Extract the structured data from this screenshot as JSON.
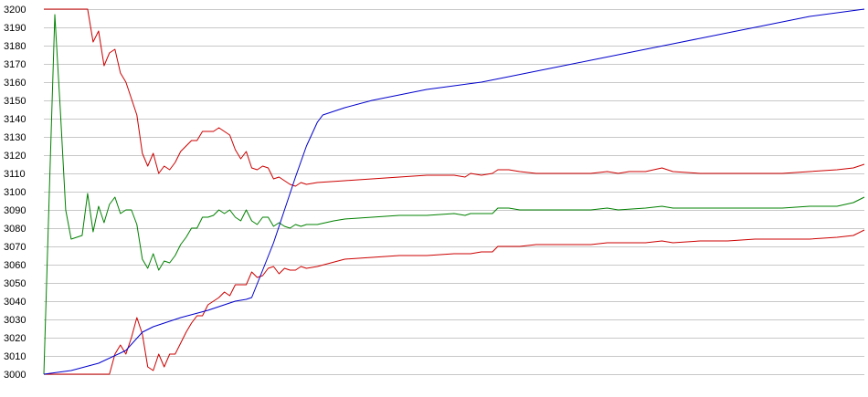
{
  "chart_data": {
    "type": "line",
    "title": "",
    "xlabel": "",
    "ylabel": "",
    "ylim": [
      3000,
      3200
    ],
    "yticks": [
      3000,
      3010,
      3020,
      3030,
      3040,
      3050,
      3060,
      3070,
      3080,
      3090,
      3100,
      3110,
      3120,
      3130,
      3140,
      3150,
      3160,
      3170,
      3180,
      3190,
      3200
    ],
    "x_count": 151,
    "grid": "horizontal",
    "legend": "none",
    "series": [
      {
        "color": "#cc0000",
        "points": [
          [
            0,
            3200
          ],
          [
            8,
            3200
          ],
          [
            9,
            3182
          ],
          [
            10,
            3188
          ],
          [
            11,
            3169
          ],
          [
            12,
            3176
          ],
          [
            13,
            3178
          ],
          [
            14,
            3165
          ],
          [
            15,
            3160
          ],
          [
            17,
            3142
          ],
          [
            18,
            3121
          ],
          [
            19,
            3114
          ],
          [
            20,
            3121
          ],
          [
            21,
            3110
          ],
          [
            22,
            3114
          ],
          [
            23,
            3112
          ],
          [
            24,
            3116
          ],
          [
            25,
            3122
          ],
          [
            27,
            3128
          ],
          [
            28,
            3128
          ],
          [
            29,
            3133
          ],
          [
            30,
            3133
          ],
          [
            31,
            3133
          ],
          [
            32,
            3135
          ],
          [
            34,
            3131
          ],
          [
            35,
            3123
          ],
          [
            36,
            3118
          ],
          [
            37,
            3122
          ],
          [
            38,
            3113
          ],
          [
            39,
            3112
          ],
          [
            40,
            3114
          ],
          [
            41,
            3113
          ],
          [
            42,
            3107
          ],
          [
            43,
            3108
          ],
          [
            45,
            3104
          ],
          [
            46,
            3103
          ],
          [
            47,
            3105
          ],
          [
            48,
            3104
          ],
          [
            50,
            3105
          ],
          [
            55,
            3106
          ],
          [
            60,
            3107
          ],
          [
            65,
            3108
          ],
          [
            70,
            3109
          ],
          [
            75,
            3109
          ],
          [
            77,
            3108
          ],
          [
            78,
            3110
          ],
          [
            80,
            3109
          ],
          [
            82,
            3110
          ],
          [
            83,
            3112
          ],
          [
            85,
            3112
          ],
          [
            87,
            3111
          ],
          [
            90,
            3110
          ],
          [
            95,
            3110
          ],
          [
            100,
            3110
          ],
          [
            103,
            3111
          ],
          [
            105,
            3110
          ],
          [
            107,
            3111
          ],
          [
            110,
            3111
          ],
          [
            113,
            3113
          ],
          [
            115,
            3111
          ],
          [
            120,
            3110
          ],
          [
            125,
            3110
          ],
          [
            130,
            3110
          ],
          [
            135,
            3110
          ],
          [
            140,
            3111
          ],
          [
            145,
            3112
          ],
          [
            148,
            3113
          ],
          [
            150,
            3115
          ]
        ]
      },
      {
        "color": "#008000",
        "points": [
          [
            0,
            3000
          ],
          [
            1,
            3100
          ],
          [
            2,
            3197
          ],
          [
            3,
            3145
          ],
          [
            4,
            3090
          ],
          [
            5,
            3074
          ],
          [
            7,
            3076
          ],
          [
            8,
            3099
          ],
          [
            9,
            3078
          ],
          [
            10,
            3092
          ],
          [
            11,
            3083
          ],
          [
            12,
            3093
          ],
          [
            13,
            3097
          ],
          [
            14,
            3088
          ],
          [
            15,
            3090
          ],
          [
            16,
            3090
          ],
          [
            17,
            3082
          ],
          [
            18,
            3063
          ],
          [
            19,
            3058
          ],
          [
            20,
            3066
          ],
          [
            21,
            3057
          ],
          [
            22,
            3062
          ],
          [
            23,
            3061
          ],
          [
            24,
            3065
          ],
          [
            25,
            3071
          ],
          [
            26,
            3075
          ],
          [
            27,
            3080
          ],
          [
            28,
            3080
          ],
          [
            29,
            3086
          ],
          [
            30,
            3086
          ],
          [
            31,
            3087
          ],
          [
            32,
            3090
          ],
          [
            33,
            3088
          ],
          [
            34,
            3090
          ],
          [
            35,
            3086
          ],
          [
            36,
            3084
          ],
          [
            37,
            3090
          ],
          [
            38,
            3084
          ],
          [
            39,
            3082
          ],
          [
            40,
            3086
          ],
          [
            41,
            3086
          ],
          [
            42,
            3081
          ],
          [
            43,
            3083
          ],
          [
            44,
            3081
          ],
          [
            45,
            3080
          ],
          [
            46,
            3082
          ],
          [
            47,
            3081
          ],
          [
            48,
            3082
          ],
          [
            50,
            3082
          ],
          [
            53,
            3084
          ],
          [
            55,
            3085
          ],
          [
            60,
            3086
          ],
          [
            65,
            3087
          ],
          [
            70,
            3087
          ],
          [
            75,
            3088
          ],
          [
            77,
            3087
          ],
          [
            78,
            3088
          ],
          [
            80,
            3088
          ],
          [
            82,
            3088
          ],
          [
            83,
            3091
          ],
          [
            85,
            3091
          ],
          [
            87,
            3090
          ],
          [
            90,
            3090
          ],
          [
            95,
            3090
          ],
          [
            100,
            3090
          ],
          [
            103,
            3091
          ],
          [
            105,
            3090
          ],
          [
            110,
            3091
          ],
          [
            113,
            3092
          ],
          [
            115,
            3091
          ],
          [
            120,
            3091
          ],
          [
            125,
            3091
          ],
          [
            130,
            3091
          ],
          [
            135,
            3091
          ],
          [
            140,
            3092
          ],
          [
            145,
            3092
          ],
          [
            148,
            3094
          ],
          [
            150,
            3097
          ]
        ]
      },
      {
        "color": "#cc0000",
        "points": [
          [
            0,
            3000
          ],
          [
            12,
            3000
          ],
          [
            13,
            3011
          ],
          [
            14,
            3016
          ],
          [
            15,
            3011
          ],
          [
            16,
            3020
          ],
          [
            17,
            3031
          ],
          [
            18,
            3022
          ],
          [
            19,
            3004
          ],
          [
            20,
            3002
          ],
          [
            21,
            3011
          ],
          [
            22,
            3004
          ],
          [
            23,
            3011
          ],
          [
            24,
            3011
          ],
          [
            25,
            3017
          ],
          [
            26,
            3023
          ],
          [
            27,
            3028
          ],
          [
            28,
            3032
          ],
          [
            29,
            3032
          ],
          [
            30,
            3038
          ],
          [
            31,
            3040
          ],
          [
            32,
            3042
          ],
          [
            33,
            3045
          ],
          [
            34,
            3043
          ],
          [
            35,
            3049
          ],
          [
            36,
            3049
          ],
          [
            37,
            3049
          ],
          [
            38,
            3056
          ],
          [
            39,
            3053
          ],
          [
            40,
            3054
          ],
          [
            41,
            3058
          ],
          [
            42,
            3059
          ],
          [
            43,
            3055
          ],
          [
            44,
            3058
          ],
          [
            45,
            3057
          ],
          [
            46,
            3057
          ],
          [
            47,
            3059
          ],
          [
            48,
            3058
          ],
          [
            50,
            3059
          ],
          [
            55,
            3063
          ],
          [
            60,
            3064
          ],
          [
            65,
            3065
          ],
          [
            70,
            3065
          ],
          [
            75,
            3066
          ],
          [
            77,
            3066
          ],
          [
            78,
            3066
          ],
          [
            80,
            3067
          ],
          [
            82,
            3067
          ],
          [
            83,
            3070
          ],
          [
            85,
            3070
          ],
          [
            87,
            3070
          ],
          [
            90,
            3071
          ],
          [
            95,
            3071
          ],
          [
            100,
            3071
          ],
          [
            103,
            3072
          ],
          [
            105,
            3072
          ],
          [
            110,
            3072
          ],
          [
            113,
            3073
          ],
          [
            115,
            3072
          ],
          [
            120,
            3073
          ],
          [
            125,
            3073
          ],
          [
            130,
            3074
          ],
          [
            135,
            3074
          ],
          [
            140,
            3074
          ],
          [
            145,
            3075
          ],
          [
            148,
            3076
          ],
          [
            150,
            3079
          ]
        ]
      },
      {
        "color": "#0000cc",
        "points": [
          [
            0,
            3000
          ],
          [
            5,
            3002
          ],
          [
            10,
            3006
          ],
          [
            15,
            3013
          ],
          [
            18,
            3023
          ],
          [
            20,
            3026
          ],
          [
            25,
            3031
          ],
          [
            30,
            3035
          ],
          [
            35,
            3040
          ],
          [
            37,
            3041
          ],
          [
            38,
            3042
          ],
          [
            40,
            3057
          ],
          [
            42,
            3072
          ],
          [
            44,
            3090
          ],
          [
            46,
            3108
          ],
          [
            48,
            3125
          ],
          [
            50,
            3138
          ],
          [
            51,
            3142
          ],
          [
            55,
            3146
          ],
          [
            60,
            3150
          ],
          [
            65,
            3153
          ],
          [
            70,
            3156
          ],
          [
            75,
            3158
          ],
          [
            80,
            3160
          ],
          [
            85,
            3163
          ],
          [
            90,
            3166
          ],
          [
            95,
            3169
          ],
          [
            100,
            3172
          ],
          [
            105,
            3175
          ],
          [
            110,
            3178
          ],
          [
            115,
            3181
          ],
          [
            120,
            3184
          ],
          [
            125,
            3187
          ],
          [
            130,
            3190
          ],
          [
            135,
            3193
          ],
          [
            140,
            3196
          ],
          [
            145,
            3198
          ],
          [
            150,
            3200
          ]
        ]
      }
    ]
  }
}
